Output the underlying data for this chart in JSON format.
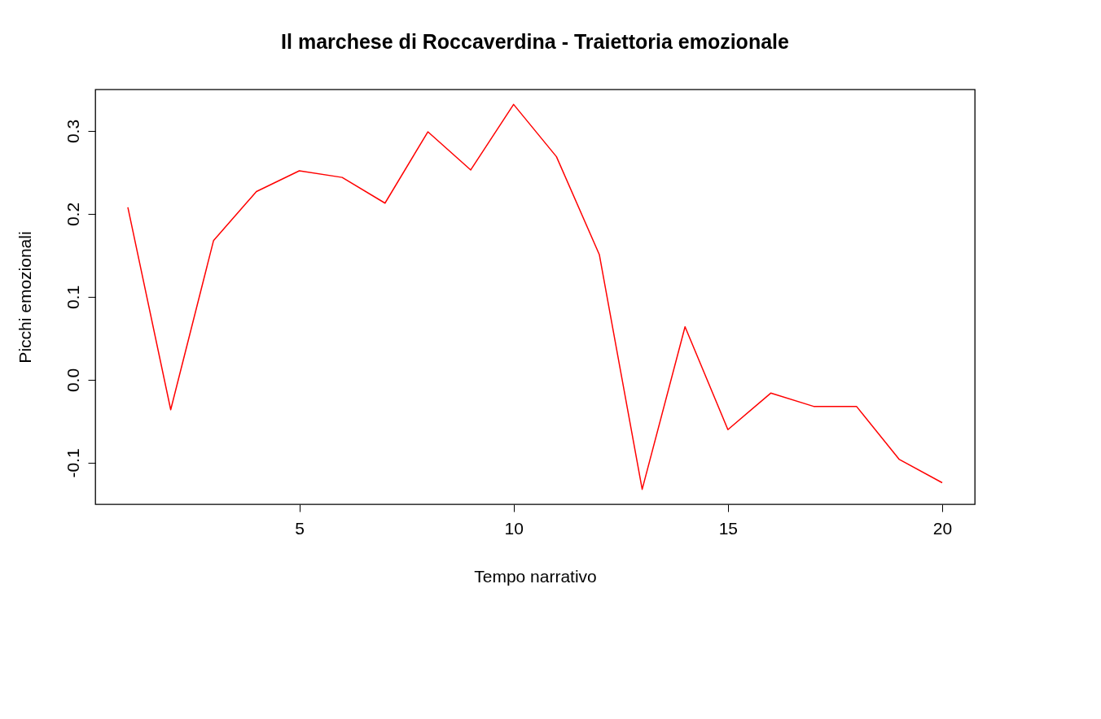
{
  "chart_data": {
    "type": "line",
    "title": "Il marchese di Roccaverdina - Traiettoria emozionale",
    "xlabel": "Tempo narrativo",
    "ylabel": "Picchi emozionali",
    "x": [
      1,
      2,
      3,
      4,
      5,
      6,
      7,
      8,
      9,
      10,
      11,
      12,
      13,
      14,
      15,
      16,
      17,
      18,
      19,
      20
    ],
    "series": [
      {
        "color": "#ff0000",
        "values": [
          0.208,
          -0.036,
          0.168,
          0.227,
          0.252,
          0.244,
          0.213,
          0.299,
          0.253,
          0.332,
          0.269,
          0.151,
          -0.132,
          0.064,
          -0.06,
          -0.016,
          -0.032,
          -0.032,
          -0.096,
          -0.124
        ]
      }
    ],
    "xlim": [
      0.24,
      20.76
    ],
    "ylim": [
      -0.15,
      0.35
    ],
    "xticks": [
      5,
      10,
      15,
      20
    ],
    "yticks": [
      {
        "value": -0.1,
        "label": "-0.1"
      },
      {
        "value": 0.0,
        "label": "0.0"
      },
      {
        "value": 0.1,
        "label": "0.1"
      },
      {
        "value": 0.2,
        "label": "0.2"
      },
      {
        "value": 0.3,
        "label": "0.3"
      }
    ],
    "grid": false,
    "legend": false,
    "marker": "none",
    "line_style": "solid"
  }
}
